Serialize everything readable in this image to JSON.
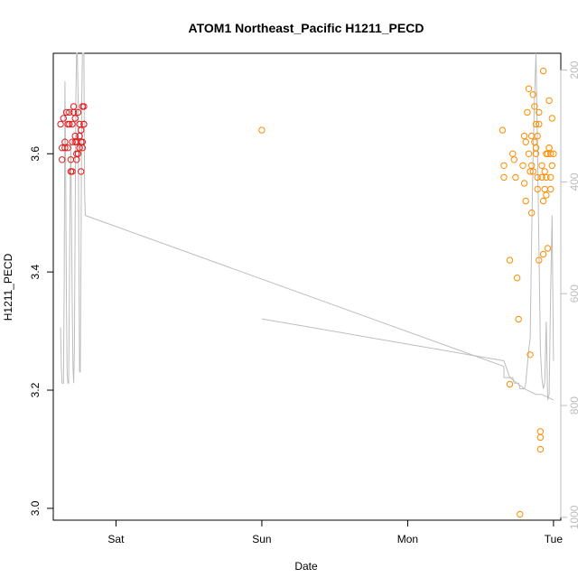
{
  "chart_data": {
    "type": "scatter",
    "title": "ATOM1 Northeast_Pacific H1211_PECD",
    "xlabel": "Date",
    "ylabel": "H1211_PECD",
    "x_ticks": [
      "Sat",
      "Sun",
      "Mon",
      "Tue"
    ],
    "y_ticks": [
      "3.0",
      "3.2",
      "3.4",
      "3.6"
    ],
    "y2_ticks": [
      "200",
      "400",
      "600",
      "800",
      "1000"
    ],
    "xlim_days": [
      -0.43,
      3.05
    ],
    "ylim": [
      2.98,
      3.77
    ],
    "y2lim": [
      1005,
      170
    ],
    "y2_reversed": true,
    "grid": false,
    "colors": {
      "series_red": "#e31a1c",
      "series_orange": "#ff8c00",
      "profile_line": "#bdbdbd",
      "right_axis": "#bdbdbd"
    },
    "series": [
      {
        "color": "#e31a1c",
        "points": [
          [
            -0.38,
            3.65
          ],
          [
            -0.37,
            3.59
          ],
          [
            -0.37,
            3.61
          ],
          [
            -0.36,
            3.66
          ],
          [
            -0.35,
            3.62
          ],
          [
            -0.35,
            3.61
          ],
          [
            -0.34,
            3.67
          ],
          [
            -0.33,
            3.65
          ],
          [
            -0.33,
            3.61
          ],
          [
            -0.32,
            3.65
          ],
          [
            -0.32,
            3.67
          ],
          [
            -0.31,
            3.57
          ],
          [
            -0.31,
            3.59
          ],
          [
            -0.3,
            3.62
          ],
          [
            -0.3,
            3.57
          ],
          [
            -0.3,
            3.65
          ],
          [
            -0.29,
            3.67
          ],
          [
            -0.29,
            3.68
          ],
          [
            -0.28,
            3.63
          ],
          [
            -0.28,
            3.62
          ],
          [
            -0.28,
            3.66
          ],
          [
            -0.27,
            3.59
          ],
          [
            -0.27,
            3.6
          ],
          [
            -0.27,
            3.62
          ],
          [
            -0.26,
            3.6
          ],
          [
            -0.26,
            3.67
          ],
          [
            -0.25,
            3.61
          ],
          [
            -0.25,
            3.63
          ],
          [
            -0.25,
            3.65
          ],
          [
            -0.24,
            3.57
          ],
          [
            -0.24,
            3.62
          ],
          [
            -0.24,
            3.64
          ],
          [
            -0.23,
            3.68
          ],
          [
            -0.23,
            3.62
          ],
          [
            -0.23,
            3.61
          ],
          [
            -0.22,
            3.65
          ],
          [
            -0.22,
            3.68
          ],
          [
            -0.22,
            3.65
          ]
        ]
      },
      {
        "color": "#ff8c00",
        "points": [
          [
            1.0,
            3.64
          ],
          [
            2.65,
            3.64
          ],
          [
            2.66,
            3.58
          ],
          [
            2.66,
            3.56
          ],
          [
            2.7,
            3.42
          ],
          [
            2.7,
            3.21
          ],
          [
            2.72,
            3.6
          ],
          [
            2.73,
            3.59
          ],
          [
            2.74,
            3.56
          ],
          [
            2.75,
            3.39
          ],
          [
            2.76,
            3.32
          ],
          [
            2.77,
            2.99
          ],
          [
            2.79,
            3.58
          ],
          [
            2.8,
            3.63
          ],
          [
            2.8,
            3.55
          ],
          [
            2.81,
            3.62
          ],
          [
            2.81,
            3.52
          ],
          [
            2.82,
            3.67
          ],
          [
            2.83,
            3.71
          ],
          [
            2.83,
            3.6
          ],
          [
            2.84,
            3.26
          ],
          [
            2.84,
            3.57
          ],
          [
            2.85,
            3.58
          ],
          [
            2.85,
            3.63
          ],
          [
            2.85,
            3.5
          ],
          [
            2.86,
            3.7
          ],
          [
            2.86,
            3.57
          ],
          [
            2.87,
            3.62
          ],
          [
            2.87,
            3.68
          ],
          [
            2.88,
            3.65
          ],
          [
            2.88,
            3.61
          ],
          [
            2.88,
            3.6
          ],
          [
            2.89,
            3.63
          ],
          [
            2.89,
            3.56
          ],
          [
            2.89,
            3.54
          ],
          [
            2.9,
            3.67
          ],
          [
            2.9,
            3.65
          ],
          [
            2.9,
            3.42
          ],
          [
            2.91,
            3.12
          ],
          [
            2.91,
            3.1
          ],
          [
            2.91,
            3.13
          ],
          [
            2.92,
            3.58
          ],
          [
            2.92,
            3.56
          ],
          [
            2.93,
            3.52
          ],
          [
            2.93,
            3.74
          ],
          [
            2.93,
            3.43
          ],
          [
            2.94,
            3.57
          ],
          [
            2.94,
            3.54
          ],
          [
            2.95,
            3.53
          ],
          [
            2.95,
            3.56
          ],
          [
            2.95,
            3.6
          ],
          [
            2.96,
            3.6
          ],
          [
            2.96,
            3.44
          ],
          [
            2.97,
            3.69
          ],
          [
            2.97,
            3.61
          ],
          [
            2.97,
            3.61
          ],
          [
            2.98,
            3.6
          ],
          [
            2.98,
            3.56
          ],
          [
            2.98,
            3.54
          ],
          [
            2.99,
            3.66
          ],
          [
            2.99,
            3.58
          ],
          [
            3.0,
            3.6
          ]
        ]
      }
    ],
    "profile_line": {
      "axis": "right",
      "color": "#bdbdbd",
      "points": [
        [
          -0.38,
          660
        ],
        [
          -0.375,
          730
        ],
        [
          -0.37,
          760
        ],
        [
          -0.36,
          760
        ],
        [
          -0.355,
          580
        ],
        [
          -0.35,
          220
        ],
        [
          -0.345,
          380
        ],
        [
          -0.34,
          600
        ],
        [
          -0.335,
          740
        ],
        [
          -0.33,
          760
        ],
        [
          -0.325,
          760
        ],
        [
          -0.32,
          600
        ],
        [
          -0.315,
          420
        ],
        [
          -0.31,
          330
        ],
        [
          -0.305,
          470
        ],
        [
          -0.3,
          620
        ],
        [
          -0.295,
          730
        ],
        [
          -0.29,
          760
        ],
        [
          -0.285,
          700
        ],
        [
          -0.28,
          470
        ],
        [
          -0.275,
          250
        ],
        [
          -0.27,
          170
        ],
        [
          -0.265,
          170
        ],
        [
          -0.26,
          250
        ],
        [
          -0.255,
          520
        ],
        [
          -0.25,
          740
        ],
        [
          -0.245,
          740
        ],
        [
          -0.24,
          520
        ],
        [
          -0.235,
          260
        ],
        [
          -0.23,
          170
        ],
        [
          -0.225,
          170
        ],
        [
          -0.22,
          170
        ],
        [
          -0.215,
          420
        ],
        [
          -0.21,
          460
        ],
        [
          2.66,
          730
        ],
        [
          2.66,
          750
        ],
        [
          2.72,
          750
        ],
        [
          2.73,
          760
        ],
        [
          2.76,
          760
        ],
        [
          2.77,
          770
        ],
        [
          2.8,
          770
        ],
        [
          2.81,
          760
        ],
        [
          2.83,
          700
        ],
        [
          2.84,
          680
        ],
        [
          2.85,
          500
        ],
        [
          2.86,
          350
        ],
        [
          2.87,
          250
        ],
        [
          2.88,
          170
        ],
        [
          2.885,
          260
        ],
        [
          2.89,
          340
        ],
        [
          2.9,
          520
        ],
        [
          2.91,
          700
        ],
        [
          2.92,
          750
        ],
        [
          2.93,
          770
        ],
        [
          2.94,
          760
        ],
        [
          2.95,
          650
        ],
        [
          2.96,
          790
        ],
        [
          2.97,
          780
        ],
        [
          2.98,
          600
        ],
        [
          2.99,
          460
        ],
        [
          3.0,
          720
        ]
      ],
      "extra_segment": [
        [
          1.0,
          645
        ],
        [
          2.66,
          720
        ],
        [
          2.7,
          750
        ],
        [
          2.8,
          770
        ],
        [
          2.88,
          780
        ],
        [
          2.92,
          780
        ],
        [
          3.0,
          790
        ]
      ]
    }
  }
}
